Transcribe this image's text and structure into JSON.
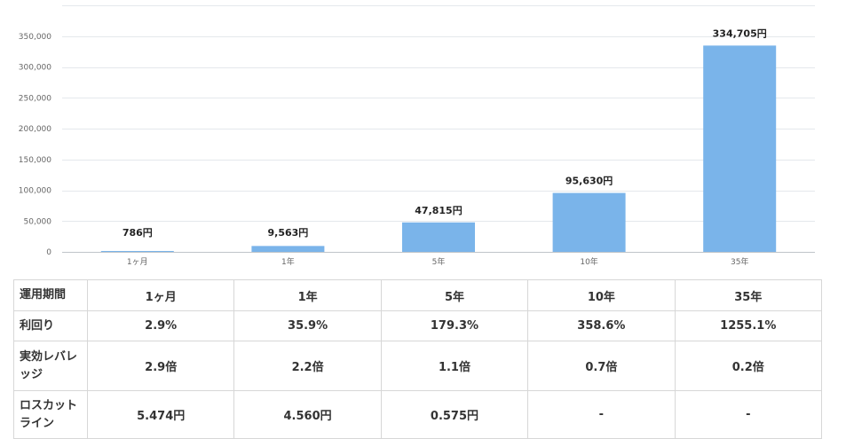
{
  "chart_data": {
    "type": "bar",
    "categories": [
      "1ヶ月",
      "1年",
      "5年",
      "10年",
      "35年"
    ],
    "values": [
      786,
      9563,
      47815,
      95630,
      334705
    ],
    "data_labels": [
      "786円",
      "9,563円",
      "47,815円",
      "95,630円",
      "334,705円"
    ],
    "y_ticks": [
      "0",
      "50,000",
      "100,000",
      "150,000",
      "200,000",
      "250,000",
      "300,000",
      "350,000"
    ],
    "ylim": [
      0,
      400000
    ],
    "title": "",
    "xlabel": "",
    "ylabel": "",
    "grid": true,
    "bar_color": "#7ab4ea"
  },
  "table": {
    "rows": [
      {
        "header": "運用期間",
        "cells": [
          "1ヶ月",
          "1年",
          "5年",
          "10年",
          "35年"
        ]
      },
      {
        "header": "利回り",
        "cells": [
          "2.9%",
          "35.9%",
          "179.3%",
          "358.6%",
          "1255.1%"
        ]
      },
      {
        "header": "実効レバレッジ",
        "cells": [
          "2.9倍",
          "2.2倍",
          "1.1倍",
          "0.7倍",
          "0.2倍"
        ]
      },
      {
        "header": "ロスカットライン",
        "cells": [
          "5.474円",
          "4.560円",
          "0.575円",
          "-",
          "-"
        ]
      }
    ]
  }
}
